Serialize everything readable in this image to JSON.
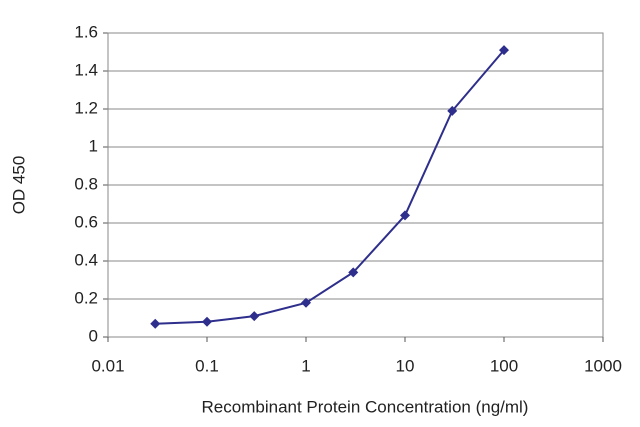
{
  "chart_data": {
    "type": "line",
    "x_label": "Recombinant Protein Concentration (ng/ml)",
    "y_label": "OD 450",
    "x": [
      0.03,
      0.1,
      0.3,
      1,
      3,
      10,
      30,
      100
    ],
    "series": [
      {
        "color": "#2e2e8c",
        "values": [
          0.07,
          0.08,
          0.11,
          0.18,
          0.34,
          0.64,
          1.19,
          1.51
        ]
      }
    ],
    "xscale": "log",
    "xlim": [
      0.01,
      1000
    ],
    "xticks": [
      0.01,
      0.1,
      1,
      10,
      100,
      1000
    ],
    "ylim": [
      0,
      1.6
    ],
    "yticks": [
      0,
      0.2,
      0.4,
      0.6,
      0.8,
      1,
      1.2,
      1.4,
      1.6
    ],
    "grid": true
  }
}
